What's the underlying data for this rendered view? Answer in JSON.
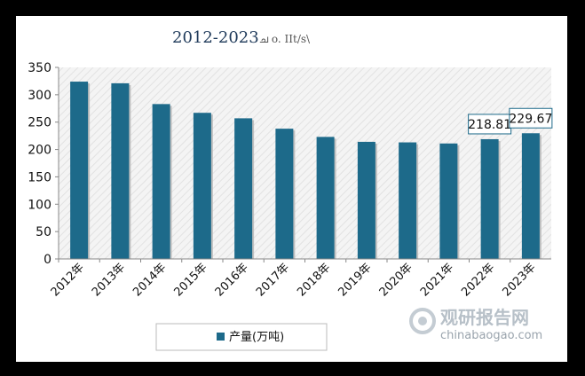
{
  "chart_data": {
    "type": "bar",
    "title": "2012-2023",
    "title_suffix": "ച o. IIt/s\\",
    "categories": [
      "2012年",
      "2013年",
      "2014年",
      "2015年",
      "2016年",
      "2017年",
      "2018年",
      "2019年",
      "2020年",
      "2021年",
      "2022年",
      "2023年"
    ],
    "series": [
      {
        "name": "产量(万吨)",
        "values": [
          324,
          321,
          283,
          267,
          257,
          238,
          223,
          214,
          213,
          211,
          218.81,
          229.67
        ]
      }
    ],
    "data_labels": {
      "10": "218.81",
      "11": "229.67"
    },
    "ylim": [
      0,
      350
    ],
    "yticks": [
      0,
      50,
      100,
      150,
      200,
      250,
      300,
      350
    ],
    "xlabel": "",
    "ylabel": "",
    "grid": false,
    "legend": "bottom",
    "colors": {
      "bar": "#1d6a8a",
      "axis": "#888888",
      "plot_bg": "#f2f2f2",
      "stripe": "#e6e6e6"
    }
  },
  "watermark": {
    "cn": "观研报告网",
    "en": "chinabaogao.com"
  }
}
